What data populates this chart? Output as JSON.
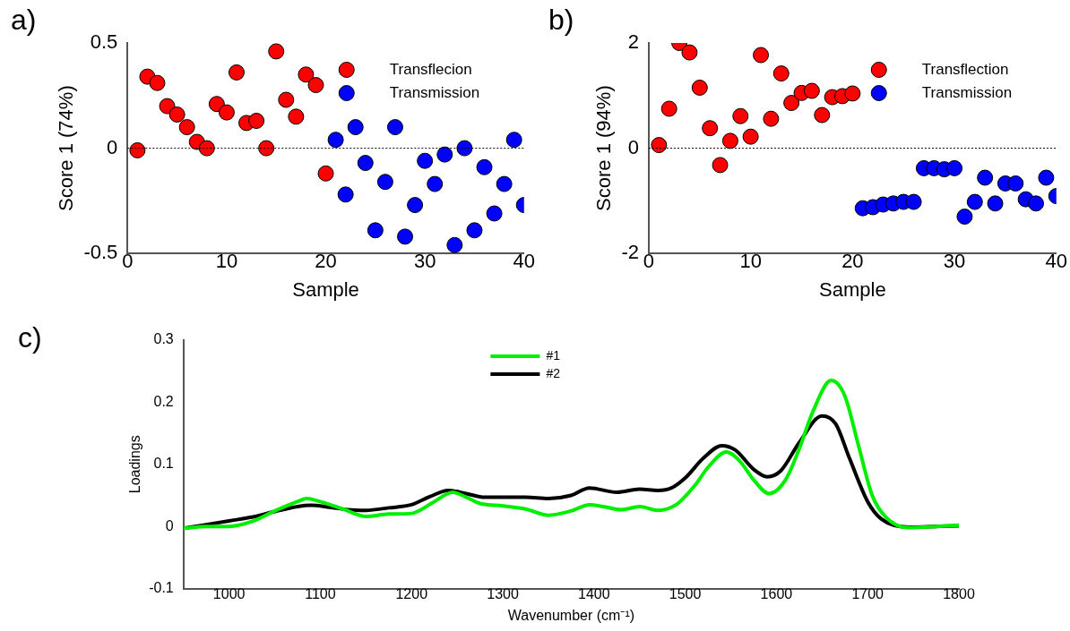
{
  "chart_data": [
    {
      "type": "scatter",
      "annotations": [
        "a)"
      ],
      "xlabel": "Sample",
      "ylabel": "Score 1 (74%)",
      "x": [
        1,
        2,
        3,
        4,
        5,
        6,
        7,
        8,
        9,
        10,
        11,
        12,
        13,
        14,
        15,
        16,
        17,
        18,
        19,
        20,
        21,
        22,
        23,
        24,
        25,
        26,
        27,
        28,
        29,
        30,
        31,
        32,
        33,
        34,
        35,
        36,
        37,
        38,
        39,
        40
      ],
      "xlim": [
        0,
        40
      ],
      "xticks": [
        0,
        10,
        20,
        30,
        40
      ],
      "ylim": [
        -0.5,
        0.5
      ],
      "yticks": [
        -0.5,
        0,
        0.5
      ],
      "marker": "circle",
      "legend": "top right",
      "grid": false,
      "ref_lines": [
        {
          "axis": "y",
          "value": 0,
          "color": "#000000",
          "line_style": "dotted"
        }
      ],
      "series": [
        {
          "name": "Transflecion",
          "color": "#ff0000",
          "values": [
            -0.01,
            0.34,
            0.31,
            0.2,
            0.16,
            0.1,
            0.03,
            0,
            0.21,
            0.17,
            0.36,
            0.12,
            0.13,
            0,
            0.46,
            0.23,
            0.15,
            0.35,
            0.3,
            -0.12,
            null,
            null,
            null,
            null,
            null,
            null,
            null,
            null,
            null,
            null,
            null,
            null,
            null,
            null,
            null,
            null,
            null,
            null,
            null,
            null
          ]
        },
        {
          "name": "Transmission",
          "color": "#0000ff",
          "values": [
            null,
            null,
            null,
            null,
            null,
            null,
            null,
            null,
            null,
            null,
            null,
            null,
            null,
            null,
            null,
            null,
            null,
            null,
            null,
            null,
            0.04,
            -0.22,
            0.1,
            -0.07,
            -0.39,
            -0.16,
            0.1,
            -0.42,
            -0.27,
            -0.06,
            -0.17,
            -0.03,
            -0.46,
            0,
            -0.39,
            -0.09,
            -0.31,
            -0.17,
            0.04,
            -0.27
          ]
        }
      ]
    },
    {
      "type": "scatter",
      "annotations": [
        "b)"
      ],
      "xlabel": "Sample",
      "ylabel": "Score 1 (94%)",
      "x": [
        1,
        2,
        3,
        4,
        5,
        6,
        7,
        8,
        9,
        10,
        11,
        12,
        13,
        14,
        15,
        16,
        17,
        18,
        19,
        20,
        21,
        22,
        23,
        24,
        25,
        26,
        27,
        28,
        29,
        30,
        31,
        32,
        33,
        34,
        35,
        36,
        37,
        38,
        39,
        40
      ],
      "xlim": [
        0,
        40
      ],
      "xticks": [
        0,
        10,
        20,
        30,
        40
      ],
      "ylim": [
        -2,
        2
      ],
      "yticks": [
        -2,
        0,
        2
      ],
      "marker": "circle",
      "legend": "top right",
      "grid": false,
      "ref_lines": [
        {
          "axis": "y",
          "value": 0,
          "color": "#000000",
          "line_style": "dotted"
        }
      ],
      "series": [
        {
          "name": "Transflection",
          "color": "#ff0000",
          "values": [
            0.06,
            0.75,
            2,
            1.82,
            1.15,
            0.38,
            -0.32,
            0.14,
            0.61,
            0.22,
            1.77,
            0.56,
            1.42,
            0.86,
            1.05,
            1.09,
            0.63,
            0.97,
            0.99,
            1.04,
            null,
            null,
            null,
            null,
            null,
            null,
            null,
            null,
            null,
            null,
            null,
            null,
            null,
            null,
            null,
            null,
            null,
            null,
            null,
            null
          ]
        },
        {
          "name": "Transmission",
          "color": "#0000ff",
          "values": [
            null,
            null,
            null,
            null,
            null,
            null,
            null,
            null,
            null,
            null,
            null,
            null,
            null,
            null,
            null,
            null,
            null,
            null,
            null,
            null,
            -1.14,
            -1.12,
            -1.07,
            -1.05,
            -1.02,
            -1.02,
            -0.38,
            -0.38,
            -0.4,
            -0.38,
            -1.3,
            -1.02,
            -0.56,
            -1.05,
            -0.67,
            -0.67,
            -0.97,
            -1.05,
            -0.56,
            -0.91
          ]
        }
      ]
    },
    {
      "type": "line",
      "annotations": [
        "c)"
      ],
      "xlabel": "Wavenumber (cm⁻¹)",
      "ylabel": "Loadings",
      "xlim": [
        950,
        1800
      ],
      "xticks": [
        1000,
        1100,
        1200,
        1300,
        1400,
        1500,
        1600,
        1700,
        1800
      ],
      "ylim": [
        -0.1,
        0.3
      ],
      "yticks": [
        -0.1,
        0,
        0.1,
        0.2,
        0.3
      ],
      "legend": "top",
      "grid": false,
      "marker": "none",
      "series": [
        {
          "name": "#1",
          "color": "#00ee00",
          "x": [
            950,
            975,
            1000,
            1025,
            1050,
            1075,
            1085,
            1100,
            1125,
            1150,
            1175,
            1200,
            1225,
            1245,
            1260,
            1275,
            1300,
            1325,
            1350,
            1375,
            1395,
            1410,
            1430,
            1450,
            1470,
            1490,
            1510,
            1525,
            1545,
            1560,
            1575,
            1592,
            1610,
            1625,
            1640,
            1660,
            1675,
            1690,
            1705,
            1720,
            1745,
            1775,
            1800
          ],
          "values": [
            -0.003,
            0,
            0,
            0.008,
            0.025,
            0.04,
            0.045,
            0.04,
            0.028,
            0.016,
            0.02,
            0.021,
            0.04,
            0.055,
            0.047,
            0.037,
            0.033,
            0.028,
            0.018,
            0.025,
            0.035,
            0.032,
            0.027,
            0.032,
            0.026,
            0.035,
            0.065,
            0.095,
            0.12,
            0.105,
            0.075,
            0.053,
            0.075,
            0.125,
            0.185,
            0.235,
            0.21,
            0.13,
            0.05,
            0.015,
            -0.002,
            0,
            0.002
          ]
        },
        {
          "name": "#2",
          "color": "#000000",
          "x": [
            950,
            975,
            1000,
            1025,
            1050,
            1075,
            1090,
            1110,
            1130,
            1150,
            1175,
            1200,
            1220,
            1240,
            1260,
            1280,
            1300,
            1325,
            1350,
            1375,
            1395,
            1425,
            1450,
            1470,
            1485,
            1500,
            1520,
            1540,
            1555,
            1575,
            1590,
            1605,
            1625,
            1650,
            1665,
            1680,
            1700,
            1715,
            1745,
            1775,
            1800
          ],
          "values": [
            -0.003,
            0.003,
            0.009,
            0.015,
            0.024,
            0.032,
            0.034,
            0.031,
            0.027,
            0.026,
            0.03,
            0.035,
            0.048,
            0.058,
            0.053,
            0.047,
            0.047,
            0.047,
            0.045,
            0.05,
            0.062,
            0.055,
            0.06,
            0.058,
            0.062,
            0.078,
            0.11,
            0.13,
            0.123,
            0.092,
            0.08,
            0.09,
            0.135,
            0.178,
            0.165,
            0.11,
            0.04,
            0.012,
            -0.001,
            0,
            0.001
          ]
        }
      ]
    }
  ]
}
